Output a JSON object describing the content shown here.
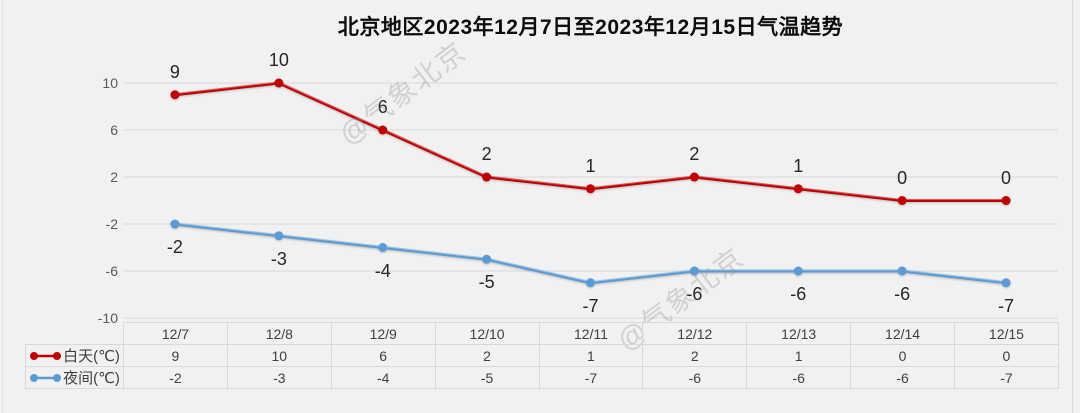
{
  "title": "北京地区2023年12月7日至2023年12月15日气温趋势",
  "watermark": {
    "text": "@气象北京"
  },
  "colors": {
    "background": "#f1f1f1",
    "gridline": "#d9d9d9",
    "axis_label": "#595959",
    "data_label": "#262626",
    "table_text": "#404040",
    "table_border": "#d9d9d9",
    "day_series": "#c00000",
    "night_series": "#5b9bd5"
  },
  "chart_data": {
    "type": "line",
    "title": "北京地区2023年12月7日至2023年12月15日气温趋势",
    "categories": [
      "12/7",
      "12/8",
      "12/9",
      "12/10",
      "12/11",
      "12/12",
      "12/13",
      "12/14",
      "12/15"
    ],
    "series": [
      {
        "name": "白天(℃)",
        "color": "#c00000",
        "values": [
          9,
          10,
          6,
          2,
          1,
          2,
          1,
          0,
          0
        ],
        "label_position": "above"
      },
      {
        "name": "夜间(℃)",
        "color": "#5b9bd5",
        "values": [
          -2,
          -3,
          -4,
          -5,
          -7,
          -6,
          -6,
          -6,
          -7
        ],
        "label_position": "below"
      }
    ],
    "ylim": [
      -10,
      10
    ],
    "yticks": [
      10,
      6,
      2,
      -2,
      -6,
      -10
    ],
    "grid": true,
    "data_labels": true,
    "legend_position": "data-table-left",
    "xlabel": "",
    "ylabel": ""
  }
}
